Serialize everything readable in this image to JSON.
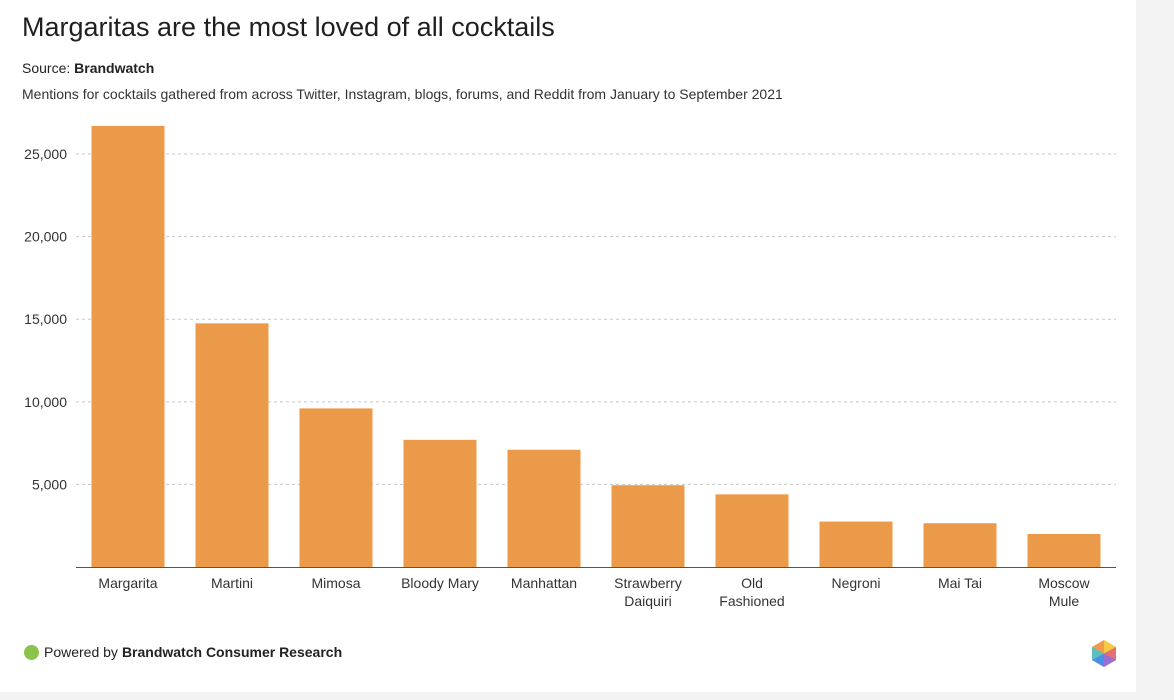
{
  "header": {
    "title": "Margaritas are the most loved of all cocktails",
    "source_label": "Source:",
    "source_name": "Brandwatch",
    "subtitle": "Mentions for cocktails gathered from across Twitter, Instagram, blogs, forums, and Reddit from January to September 2021"
  },
  "footer": {
    "powered_label": "Powered by",
    "powered_name": "Brandwatch Consumer Research",
    "dot_icon": "green-dot-icon",
    "logo_icon": "brandwatch-hexagon-logo-icon"
  },
  "colors": {
    "bar": "#eb9a4a",
    "grid": "#c8c8c8",
    "axis": "#555555",
    "footer_dot": "#8bc34a"
  },
  "chart_data": {
    "type": "bar",
    "categories": [
      "Margarita",
      "Martini",
      "Mimosa",
      "Bloody Mary",
      "Manhattan",
      "Strawberry Daiquiri",
      "Old Fashioned",
      "Negroni",
      "Mai Tai",
      "Moscow Mule"
    ],
    "category_lines": [
      [
        "Margarita"
      ],
      [
        "Martini"
      ],
      [
        "Mimosa"
      ],
      [
        "Bloody Mary"
      ],
      [
        "Manhattan"
      ],
      [
        "Strawberry",
        "Daiquiri"
      ],
      [
        "Old",
        "Fashioned"
      ],
      [
        "Negroni"
      ],
      [
        "Mai Tai"
      ],
      [
        "Moscow",
        "Mule"
      ]
    ],
    "values": [
      26700,
      14750,
      9600,
      7700,
      7100,
      4950,
      4400,
      2750,
      2650,
      2000
    ],
    "yticks": [
      5000,
      10000,
      15000,
      20000,
      25000
    ],
    "ytick_labels": [
      "5,000",
      "10,000",
      "15,000",
      "20,000",
      "25,000"
    ],
    "ylim": [
      0,
      27000
    ],
    "xlabel": "",
    "ylabel": "",
    "grid": true,
    "legend": "none"
  }
}
